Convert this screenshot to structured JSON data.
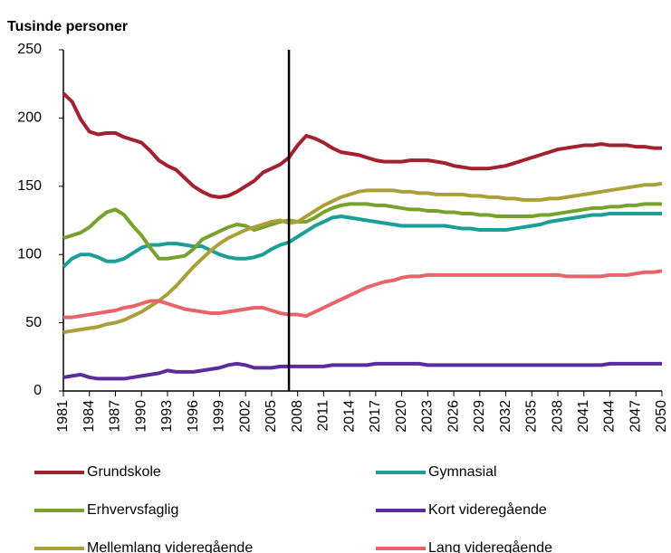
{
  "chart_data": {
    "type": "line",
    "title": "Tusinde personer",
    "x": [
      1981,
      1982,
      1983,
      1984,
      1985,
      1986,
      1987,
      1988,
      1989,
      1990,
      1991,
      1992,
      1993,
      1994,
      1995,
      1996,
      1997,
      1998,
      1999,
      2000,
      2001,
      2002,
      2003,
      2004,
      2005,
      2006,
      2007,
      2008,
      2009,
      2010,
      2011,
      2012,
      2013,
      2014,
      2015,
      2016,
      2017,
      2018,
      2019,
      2020,
      2021,
      2022,
      2023,
      2024,
      2025,
      2026,
      2027,
      2028,
      2029,
      2030,
      2031,
      2032,
      2033,
      2034,
      2035,
      2036,
      2037,
      2038,
      2039,
      2040,
      2041,
      2042,
      2043,
      2044,
      2045,
      2046,
      2047,
      2048,
      2049,
      2050
    ],
    "xlim": [
      1981,
      2050
    ],
    "xticks": [
      1981,
      1984,
      1987,
      1990,
      1993,
      1996,
      1999,
      2002,
      2005,
      2008,
      2011,
      2014,
      2017,
      2020,
      2023,
      2026,
      2029,
      2032,
      2035,
      2038,
      2041,
      2044,
      2047,
      2050
    ],
    "ylim": [
      0,
      250
    ],
    "yticks": [
      0,
      50,
      100,
      150,
      200,
      250
    ],
    "grid": false,
    "vline_x": 2007,
    "legend_position": "bottom",
    "series": [
      {
        "name": "Grundskole",
        "color": "#a3202e",
        "values": [
          218,
          212,
          199,
          190,
          188,
          189,
          189,
          186,
          184,
          182,
          176,
          169,
          165,
          162,
          156,
          150,
          146,
          143,
          142,
          143,
          146,
          150,
          154,
          160,
          163,
          166,
          171,
          180,
          187,
          185,
          182,
          178,
          175,
          174,
          173,
          171,
          169,
          168,
          168,
          168,
          169,
          169,
          169,
          168,
          167,
          165,
          164,
          163,
          163,
          163,
          164,
          165,
          167,
          169,
          171,
          173,
          175,
          177,
          178,
          179,
          180,
          180,
          181,
          180,
          180,
          180,
          179,
          179,
          178,
          178
        ]
      },
      {
        "name": "Gymnasial",
        "color": "#1a9e96",
        "values": [
          91,
          97,
          100,
          100,
          98,
          95,
          95,
          97,
          101,
          105,
          107,
          107,
          108,
          108,
          107,
          106,
          106,
          103,
          100,
          98,
          97,
          97,
          98,
          100,
          104,
          107,
          109,
          113,
          117,
          121,
          124,
          127,
          128,
          127,
          126,
          125,
          124,
          123,
          122,
          121,
          121,
          121,
          121,
          121,
          121,
          120,
          119,
          119,
          118,
          118,
          118,
          118,
          119,
          120,
          121,
          122,
          124,
          125,
          126,
          127,
          128,
          129,
          129,
          130,
          130,
          130,
          130,
          130,
          130,
          130
        ]
      },
      {
        "name": "Erhvervsfaglig",
        "color": "#77a22e",
        "values": [
          112,
          114,
          116,
          120,
          126,
          131,
          133,
          129,
          121,
          114,
          105,
          97,
          97,
          98,
          99,
          104,
          111,
          114,
          117,
          120,
          122,
          121,
          118,
          120,
          122,
          124,
          125,
          124,
          124,
          127,
          131,
          134,
          136,
          137,
          137,
          137,
          136,
          136,
          135,
          134,
          133,
          133,
          132,
          132,
          131,
          131,
          130,
          130,
          129,
          129,
          128,
          128,
          128,
          128,
          128,
          129,
          129,
          130,
          131,
          132,
          133,
          134,
          134,
          135,
          135,
          136,
          136,
          137,
          137,
          137
        ]
      },
      {
        "name": "Kort videregående",
        "color": "#5b2c9c",
        "values": [
          10,
          11,
          12,
          10,
          9,
          9,
          9,
          9,
          10,
          11,
          12,
          13,
          15,
          14,
          14,
          14,
          15,
          16,
          17,
          19,
          20,
          19,
          17,
          17,
          17,
          18,
          18,
          18,
          18,
          18,
          18,
          19,
          19,
          19,
          19,
          19,
          20,
          20,
          20,
          20,
          20,
          20,
          19,
          19,
          19,
          19,
          19,
          19,
          19,
          19,
          19,
          19,
          19,
          19,
          19,
          19,
          19,
          19,
          19,
          19,
          19,
          19,
          19,
          20,
          20,
          20,
          20,
          20,
          20,
          20
        ]
      },
      {
        "name": "Mellemlang videregående",
        "color": "#a9a03a",
        "values": [
          43,
          44,
          45,
          46,
          47,
          49,
          50,
          52,
          55,
          58,
          62,
          66,
          71,
          77,
          84,
          91,
          97,
          103,
          108,
          112,
          115,
          118,
          120,
          122,
          124,
          125,
          123,
          124,
          128,
          132,
          136,
          139,
          142,
          144,
          146,
          147,
          147,
          147,
          147,
          146,
          146,
          145,
          145,
          144,
          144,
          144,
          144,
          143,
          143,
          142,
          142,
          141,
          141,
          140,
          140,
          140,
          141,
          141,
          142,
          143,
          144,
          145,
          146,
          147,
          148,
          149,
          150,
          151,
          151,
          152
        ]
      },
      {
        "name": "Lang videregående",
        "color": "#e8636a",
        "values": [
          54,
          54,
          55,
          56,
          57,
          58,
          59,
          61,
          62,
          64,
          66,
          66,
          64,
          62,
          60,
          59,
          58,
          57,
          57,
          58,
          59,
          60,
          61,
          61,
          59,
          57,
          56,
          56,
          55,
          58,
          61,
          64,
          67,
          70,
          73,
          76,
          78,
          80,
          81,
          83,
          84,
          84,
          85,
          85,
          85,
          85,
          85,
          85,
          85,
          85,
          85,
          85,
          85,
          85,
          85,
          85,
          85,
          85,
          84,
          84,
          84,
          84,
          84,
          85,
          85,
          85,
          86,
          87,
          87,
          88
        ]
      }
    ]
  }
}
